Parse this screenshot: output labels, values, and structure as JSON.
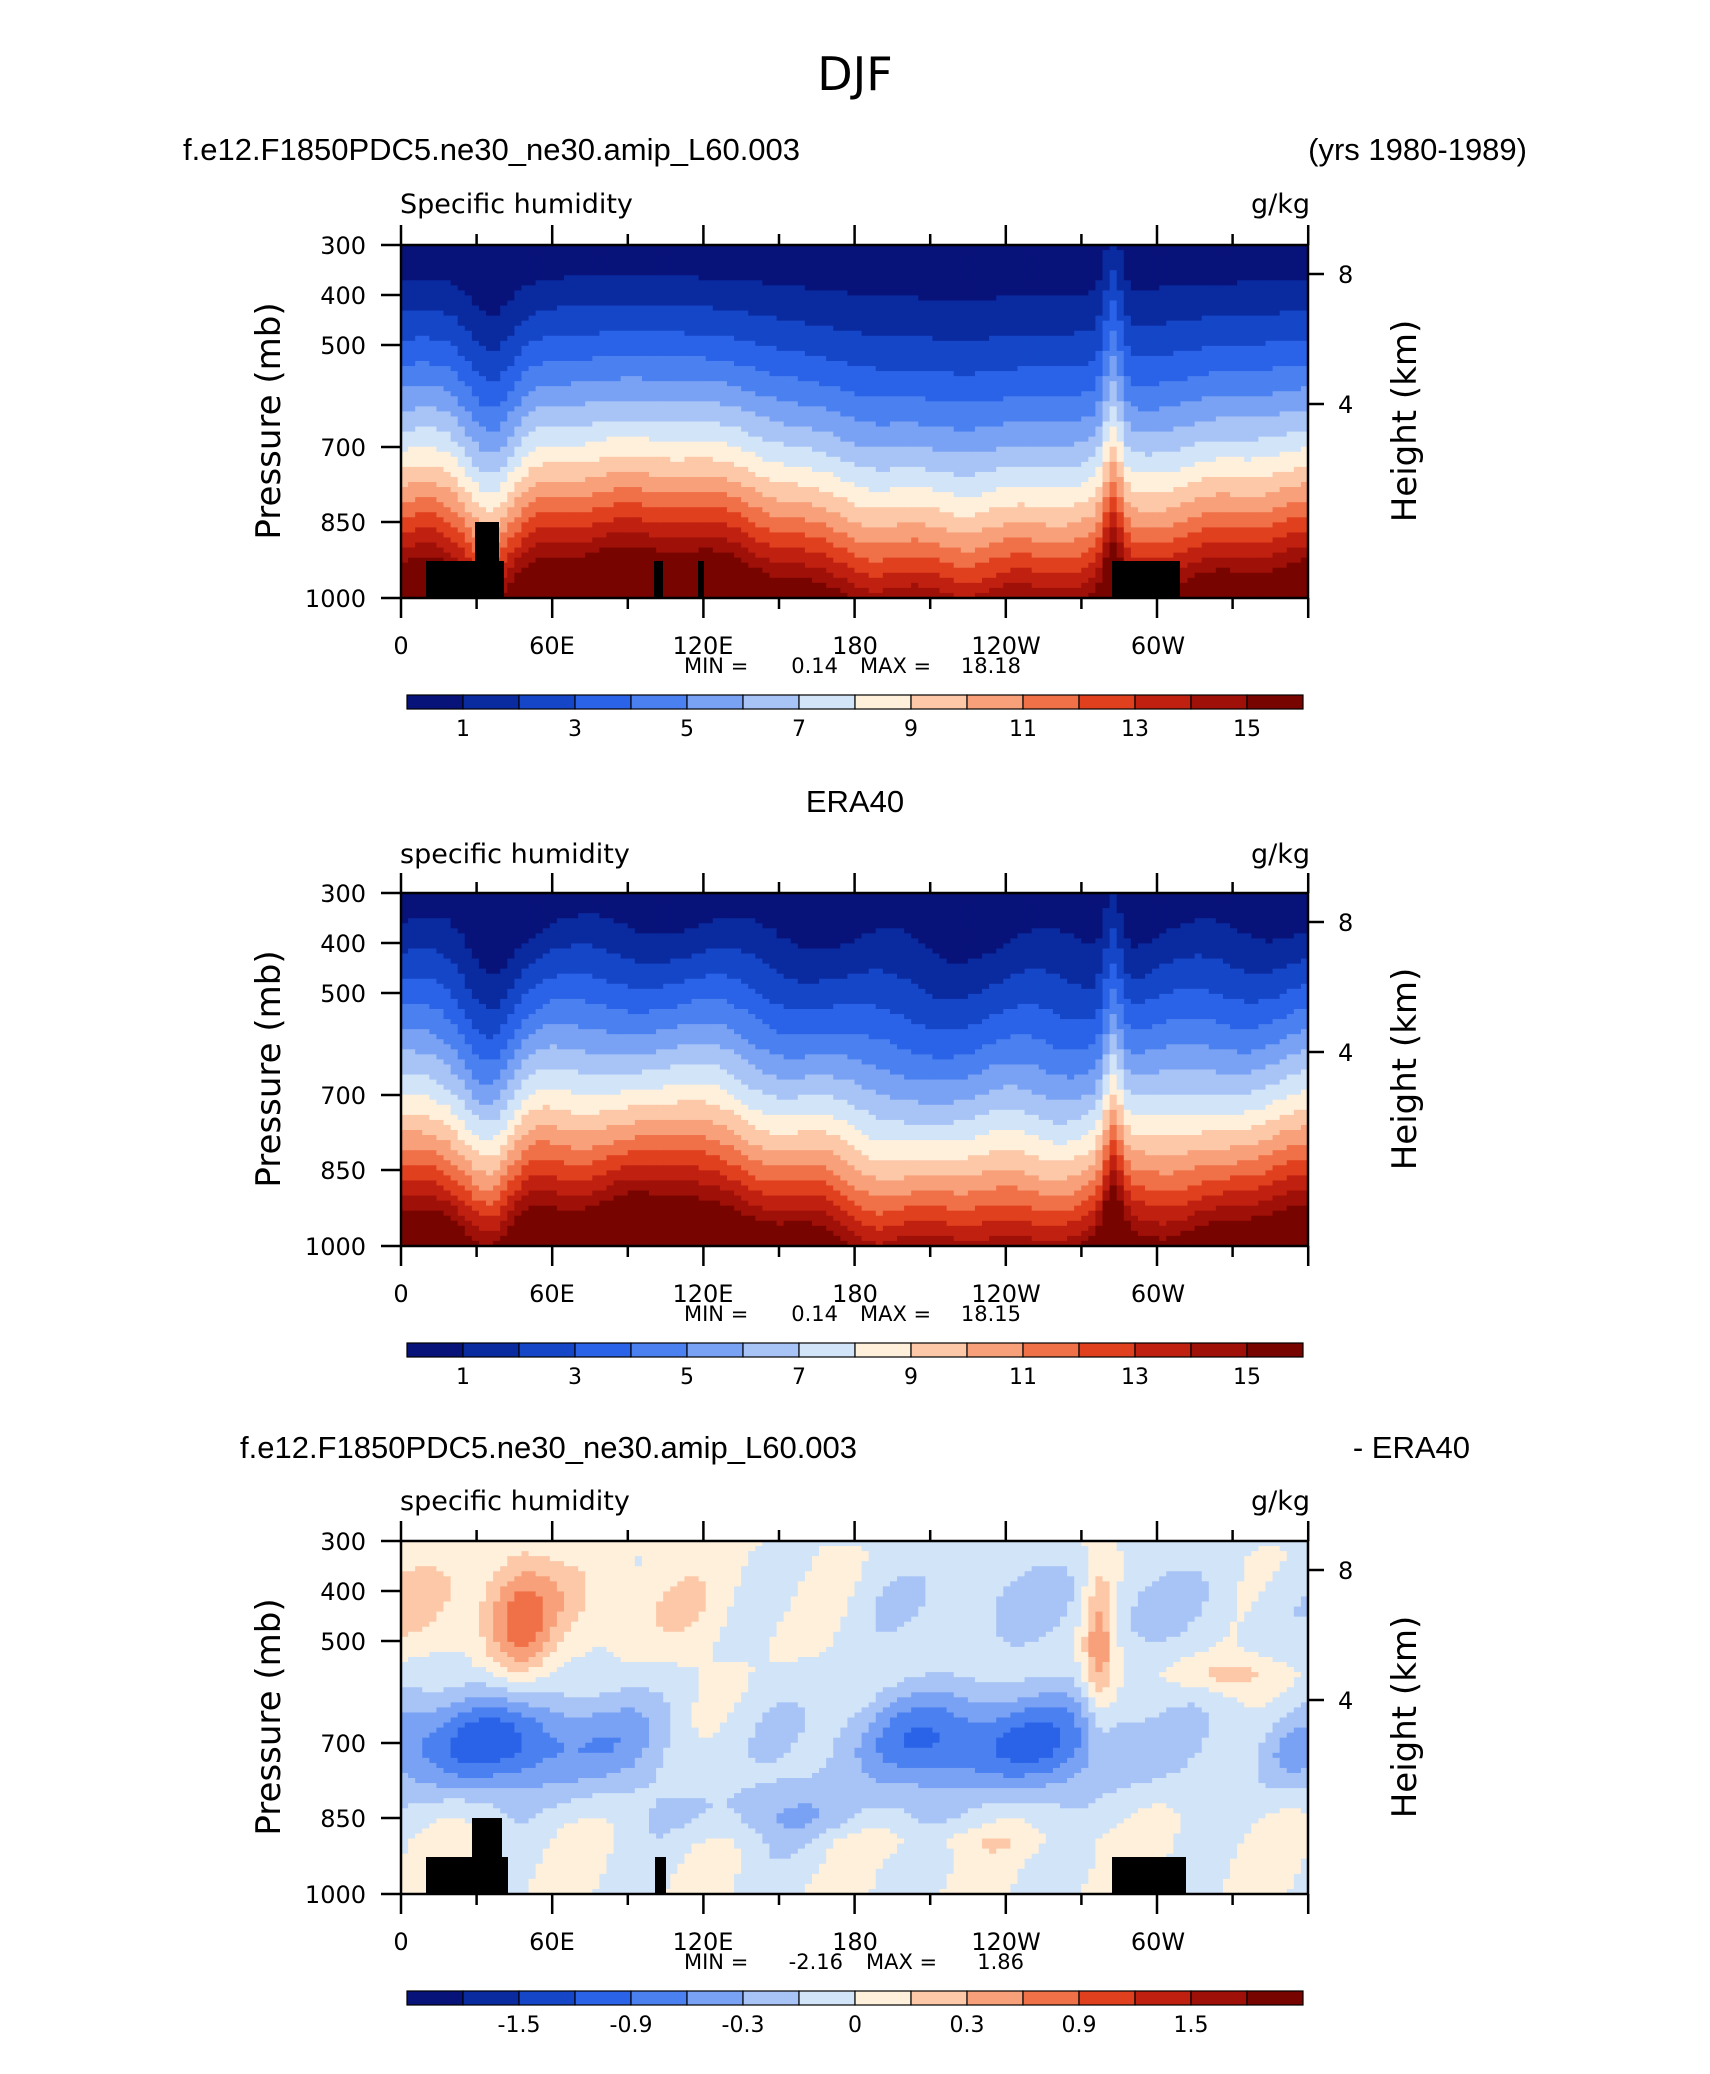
{
  "figure": {
    "title": "DJF",
    "bg": "#ffffff"
  },
  "palette": {
    "levels": [
      "#08137a",
      "#0a2aa0",
      "#1546c8",
      "#2a62e8",
      "#4a80f0",
      "#7aa2f4",
      "#a8c4f6",
      "#d2e4f8",
      "#fff0dc",
      "#fcc8a8",
      "#f8a07a",
      "#f07048",
      "#e0401e",
      "#c02010",
      "#9e1008",
      "#780400"
    ],
    "terrain": "#000000"
  },
  "chart_data": [
    {
      "type": "heatmap",
      "left_title": "f.e12.F1850PDC5.ne30_ne30.amip_L60.003",
      "right_title": "(yrs 1980-1989)",
      "center_title": "",
      "variable_label": "Specific humidity",
      "units": "g/kg",
      "ylabel": "Pressure (mb)",
      "ylabel_right": "Height (km)",
      "yticks": [
        "300",
        "400",
        "500",
        "700",
        "850",
        "1000"
      ],
      "yticks_right": [
        "8",
        "4"
      ],
      "xticks": [
        "0",
        "60E",
        "120E",
        "180",
        "120W",
        "60W"
      ],
      "min_label": "MIN =",
      "min_value": "0.14",
      "max_label": "MAX =",
      "max_value": "18.18",
      "colorbar_labels": [
        "1",
        "3",
        "5",
        "7",
        "9",
        "11",
        "13",
        "15"
      ],
      "kind": "model"
    },
    {
      "type": "heatmap",
      "left_title": "",
      "right_title": "",
      "center_title": "ERA40",
      "variable_label": "specific humidity",
      "units": "g/kg",
      "ylabel": "Pressure (mb)",
      "ylabel_right": "Height (km)",
      "yticks": [
        "300",
        "400",
        "500",
        "700",
        "850",
        "1000"
      ],
      "yticks_right": [
        "8",
        "4"
      ],
      "xticks": [
        "0",
        "60E",
        "120E",
        "180",
        "120W",
        "60W"
      ],
      "min_label": "MIN =",
      "min_value": "0.14",
      "max_label": "MAX =",
      "max_value": "18.15",
      "colorbar_labels": [
        "1",
        "3",
        "5",
        "7",
        "9",
        "11",
        "13",
        "15"
      ],
      "kind": "obs"
    },
    {
      "type": "heatmap",
      "left_title": "f.e12.F1850PDC5.ne30_ne30.amip_L60.003",
      "right_title": "- ERA40",
      "center_title": "",
      "variable_label": "specific humidity",
      "units": "g/kg",
      "ylabel": "Pressure (mb)",
      "ylabel_right": "Height (km)",
      "yticks": [
        "300",
        "400",
        "500",
        "700",
        "850",
        "1000"
      ],
      "yticks_right": [
        "8",
        "4"
      ],
      "xticks": [
        "0",
        "60E",
        "120E",
        "180",
        "120W",
        "60W"
      ],
      "min_label": "MIN =",
      "min_value": "-2.16",
      "max_label": "MAX =",
      "max_value": "1.86",
      "colorbar_labels": [
        "-1.5",
        "-0.9",
        "-0.3",
        "0",
        "0.3",
        "0.9",
        "1.5"
      ],
      "kind": "diff"
    }
  ]
}
